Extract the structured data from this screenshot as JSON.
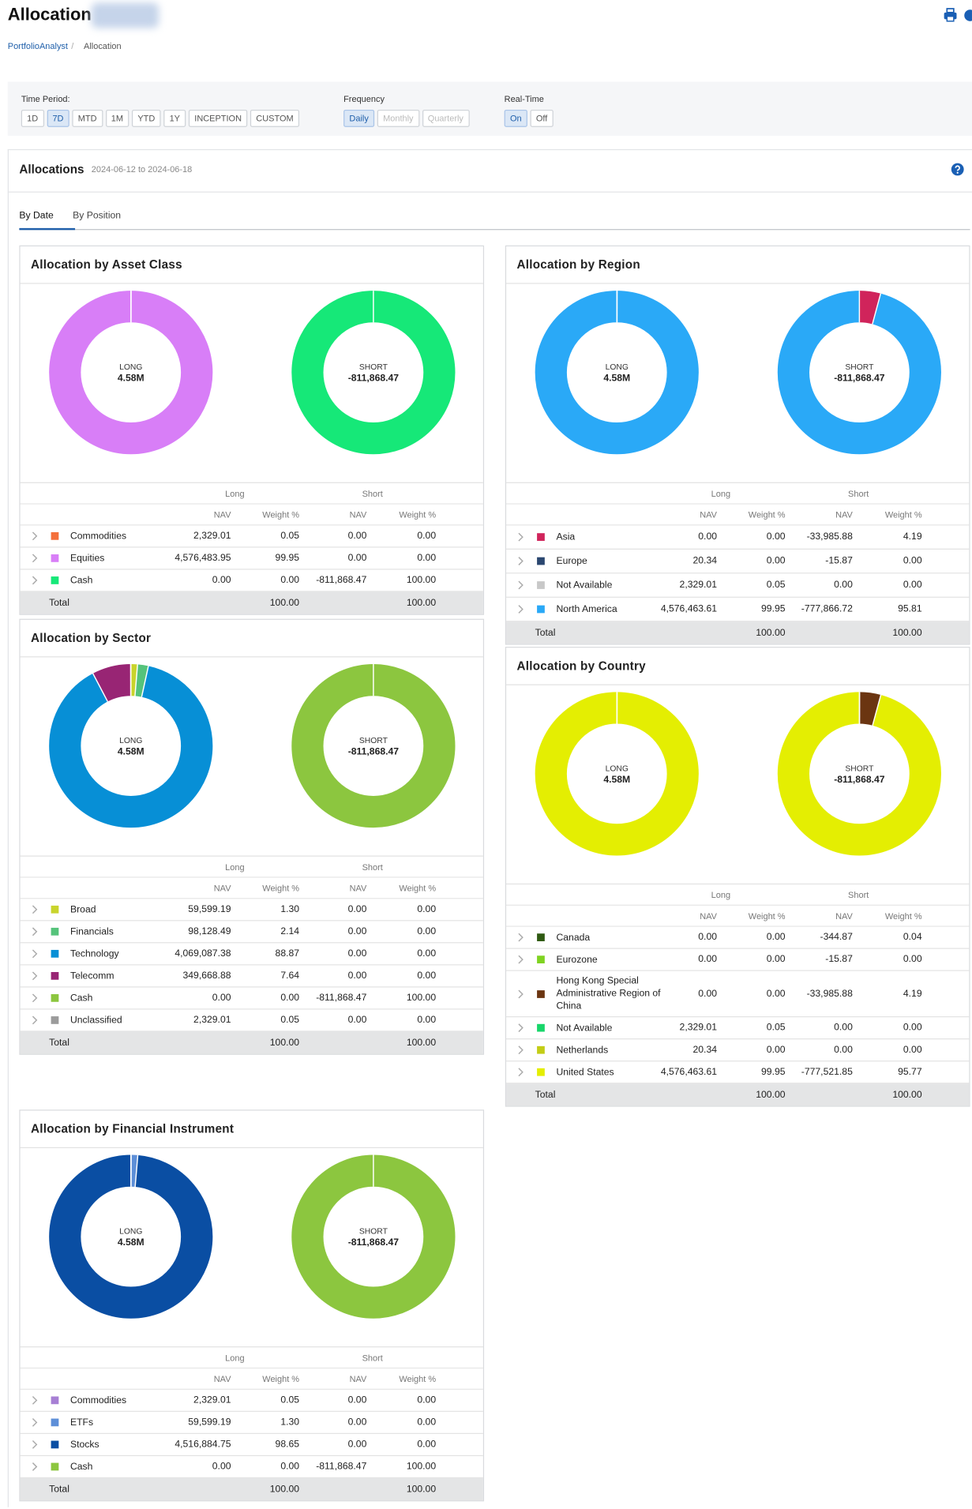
{
  "header": {
    "title": "Allocation",
    "breadcrumb": [
      "PortfolioAnalyst",
      "Allocation"
    ]
  },
  "filters": {
    "time_period": {
      "label": "Time Period:",
      "options": [
        "1D",
        "7D",
        "MTD",
        "1M",
        "YTD",
        "1Y",
        "INCEPTION",
        "CUSTOM"
      ],
      "selected": 1
    },
    "frequency": {
      "label": "Frequency",
      "options": [
        "Daily",
        "Monthly",
        "Quarterly"
      ],
      "selected": 0
    },
    "real_time": {
      "label": "Real-Time",
      "options": [
        "On",
        "Off"
      ],
      "selected": 0
    }
  },
  "allocations": {
    "title": "Allocations",
    "date_range": "2024-06-12 to 2024-06-18",
    "tabs": [
      "By Date",
      "By Position"
    ],
    "active_tab": 0,
    "long_label": "LONG",
    "long_total": "4.58M",
    "short_label": "SHORT",
    "short_total": "-811,868.47",
    "group_long": "Long",
    "group_short": "Short",
    "col_nav": "NAV",
    "col_weight": "Weight %",
    "total_label": "Total",
    "panels": [
      {
        "title": "Allocation by Asset Class",
        "total_long_weight": "100.00",
        "total_short_weight": "100.00",
        "rows": [
          {
            "name": "Commodities",
            "color": "#f4703b",
            "long_nav": "2,329.01",
            "long_weight": "0.05",
            "short_nav": "0.00",
            "short_weight": "0.00"
          },
          {
            "name": "Equities",
            "color": "#d87ef7",
            "long_nav": "4,576,483.95",
            "long_weight": "99.95",
            "short_nav": "0.00",
            "short_weight": "0.00"
          },
          {
            "name": "Cash",
            "color": "#16e878",
            "long_nav": "0.00",
            "long_weight": "0.00",
            "short_nav": "-811,868.47",
            "short_weight": "100.00"
          }
        ]
      },
      {
        "title": "Allocation by Region",
        "total_long_weight": "100.00",
        "total_short_weight": "100.00",
        "rows": [
          {
            "name": "Asia",
            "color": "#d0245b",
            "long_nav": "0.00",
            "long_weight": "0.00",
            "short_nav": "-33,985.88",
            "short_weight": "4.19"
          },
          {
            "name": "Europe",
            "color": "#2b4770",
            "long_nav": "20.34",
            "long_weight": "0.00",
            "short_nav": "-15.87",
            "short_weight": "0.00"
          },
          {
            "name": "Not Available",
            "color": "#c8c8c8",
            "long_nav": "2,329.01",
            "long_weight": "0.05",
            "short_nav": "0.00",
            "short_weight": "0.00"
          },
          {
            "name": "North America",
            "color": "#2aa9f7",
            "long_nav": "4,576,463.61",
            "long_weight": "99.95",
            "short_nav": "-777,866.72",
            "short_weight": "95.81"
          }
        ]
      },
      {
        "title": "Allocation by Sector",
        "total_long_weight": "100.00",
        "total_short_weight": "100.00",
        "rows": [
          {
            "name": "Broad",
            "color": "#c9d42c",
            "long_nav": "59,599.19",
            "long_weight": "1.30",
            "short_nav": "0.00",
            "short_weight": "0.00"
          },
          {
            "name": "Financials",
            "color": "#55c37b",
            "long_nav": "98,128.49",
            "long_weight": "2.14",
            "short_nav": "0.00",
            "short_weight": "0.00"
          },
          {
            "name": "Technology",
            "color": "#078fd6",
            "long_nav": "4,069,087.38",
            "long_weight": "88.87",
            "short_nav": "0.00",
            "short_weight": "0.00"
          },
          {
            "name": "Telecomm",
            "color": "#982574",
            "long_nav": "349,668.88",
            "long_weight": "7.64",
            "short_nav": "0.00",
            "short_weight": "0.00"
          },
          {
            "name": "Cash",
            "color": "#8cc63f",
            "long_nav": "0.00",
            "long_weight": "0.00",
            "short_nav": "-811,868.47",
            "short_weight": "100.00"
          },
          {
            "name": "Unclassified",
            "color": "#9b9b9b",
            "long_nav": "2,329.01",
            "long_weight": "0.05",
            "short_nav": "0.00",
            "short_weight": "0.00"
          }
        ]
      },
      {
        "title": "Allocation by Country",
        "total_long_weight": "100.00",
        "total_short_weight": "100.00",
        "rows": [
          {
            "name": "Canada",
            "color": "#2f5a12",
            "long_nav": "0.00",
            "long_weight": "0.00",
            "short_nav": "-344.87",
            "short_weight": "0.04"
          },
          {
            "name": "Eurozone",
            "color": "#7fd321",
            "long_nav": "0.00",
            "long_weight": "0.00",
            "short_nav": "-15.87",
            "short_weight": "0.00"
          },
          {
            "name": "Hong Kong Special Administrative Region of China",
            "color": "#6b3511",
            "long_nav": "0.00",
            "long_weight": "0.00",
            "short_nav": "-33,985.88",
            "short_weight": "4.19"
          },
          {
            "name": "Not Available",
            "color": "#18d66a",
            "long_nav": "2,329.01",
            "long_weight": "0.05",
            "short_nav": "0.00",
            "short_weight": "0.00"
          },
          {
            "name": "Netherlands",
            "color": "#c3cd16",
            "long_nav": "20.34",
            "long_weight": "0.00",
            "short_nav": "0.00",
            "short_weight": "0.00"
          },
          {
            "name": "United States",
            "color": "#e4ee02",
            "long_nav": "4,576,463.61",
            "long_weight": "99.95",
            "short_nav": "-777,521.85",
            "short_weight": "95.77"
          }
        ]
      },
      {
        "title": "Allocation by Financial Instrument",
        "total_long_weight": "100.00",
        "total_short_weight": "100.00",
        "rows": [
          {
            "name": "Commodities",
            "color": "#a77fd4",
            "long_nav": "2,329.01",
            "long_weight": "0.05",
            "short_nav": "0.00",
            "short_weight": "0.00"
          },
          {
            "name": "ETFs",
            "color": "#5d8fd8",
            "long_nav": "59,599.19",
            "long_weight": "1.30",
            "short_nav": "0.00",
            "short_weight": "0.00"
          },
          {
            "name": "Stocks",
            "color": "#0a4ea3",
            "long_nav": "4,516,884.75",
            "long_weight": "98.65",
            "short_nav": "0.00",
            "short_weight": "0.00"
          },
          {
            "name": "Cash",
            "color": "#8cc63f",
            "long_nav": "0.00",
            "long_weight": "0.00",
            "short_nav": "-811,868.47",
            "short_weight": "100.00"
          }
        ]
      }
    ]
  }
}
